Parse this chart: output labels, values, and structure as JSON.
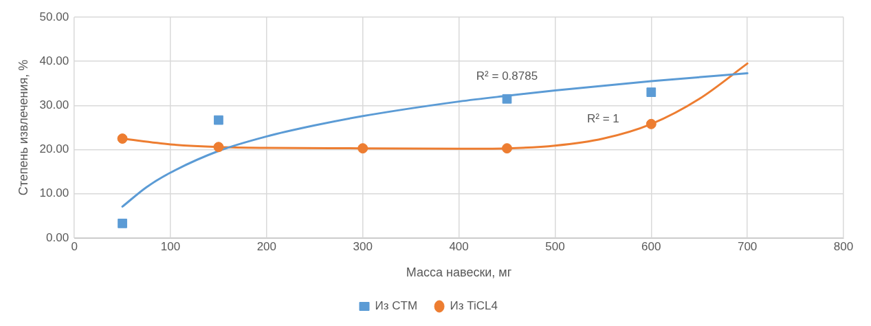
{
  "chart_data": {
    "type": "scatter",
    "xlabel": "Масса навески, мг",
    "ylabel": "Степень извлечения, %",
    "xlim": [
      0,
      800
    ],
    "xticks": [
      0,
      100,
      200,
      300,
      400,
      500,
      600,
      700,
      800
    ],
    "ylim": [
      0,
      50
    ],
    "yticks": [
      {
        "value": 0,
        "label": "0.00"
      },
      {
        "value": 10,
        "label": "10.00"
      },
      {
        "value": 20,
        "label": "20.00"
      },
      {
        "value": 30,
        "label": "30.00"
      },
      {
        "value": 40,
        "label": "40.00"
      },
      {
        "value": 50,
        "label": "50.00"
      }
    ],
    "grid": true,
    "legend": "bottom",
    "series": [
      {
        "name": "Из CTM",
        "type": "scatter",
        "marker": "square",
        "color": "#5b9bd5",
        "x": [
          50,
          150,
          450,
          600
        ],
        "values": [
          3.3,
          26.7,
          31.5,
          33.0
        ]
      },
      {
        "name": "Из TiCL4",
        "type": "scatter",
        "marker": "circle",
        "color": "#ed7d31",
        "x": [
          50,
          150,
          300,
          450,
          600
        ],
        "values": [
          22.5,
          20.6,
          20.3,
          20.3,
          25.8
        ]
      },
      {
        "type": "line",
        "marker": "none",
        "color": "#5b9bd5",
        "x": [
          50,
          75,
          100,
          150,
          200,
          250,
          300,
          400,
          450,
          500,
          600,
          700
        ],
        "values": [
          7.1,
          11.5,
          14.8,
          19.7,
          23.0,
          25.5,
          27.6,
          30.9,
          32.2,
          33.4,
          35.5,
          37.3
        ]
      },
      {
        "type": "line",
        "marker": "none",
        "color": "#ed7d31",
        "x": [
          50,
          100,
          150,
          200,
          300,
          400,
          450,
          500,
          550,
          600,
          650,
          700
        ],
        "values": [
          22.5,
          21.2,
          20.6,
          20.4,
          20.3,
          20.2,
          20.3,
          20.9,
          22.5,
          25.8,
          31.5,
          39.5
        ]
      }
    ],
    "annotations": [
      "R² = 0.8785",
      "R² = 1"
    ]
  }
}
